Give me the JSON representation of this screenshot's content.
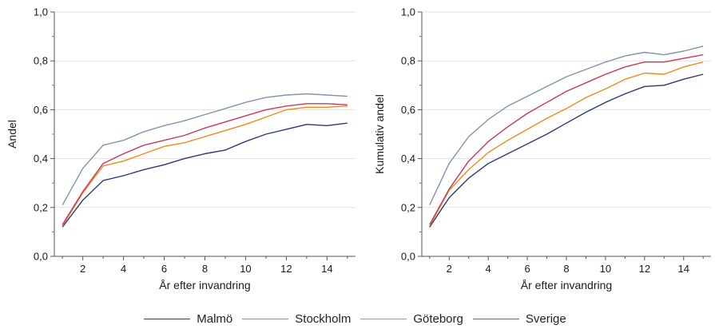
{
  "chart_data": [
    {
      "type": "line",
      "title": "",
      "xlabel": "År efter invandring",
      "ylabel": "Andel",
      "xlim": [
        0.6,
        15.4
      ],
      "ylim": [
        0,
        1
      ],
      "x": [
        1,
        2,
        3,
        4,
        5,
        6,
        7,
        8,
        9,
        10,
        11,
        12,
        13,
        14,
        15
      ],
      "xticks": [
        2,
        4,
        6,
        8,
        10,
        12,
        14
      ],
      "yticks": [
        0,
        0.2,
        0.4,
        0.6,
        0.8,
        1.0
      ],
      "ytick_labels": [
        "0,0",
        "0,2",
        "0,4",
        "0,6",
        "0,8",
        "1,0"
      ],
      "series": [
        {
          "name": "Malmö",
          "color": "#2b3a7a",
          "values": [
            0.12,
            0.23,
            0.31,
            0.33,
            0.355,
            0.375,
            0.4,
            0.42,
            0.435,
            0.47,
            0.5,
            0.52,
            0.54,
            0.535,
            0.545
          ]
        },
        {
          "name": "Stockholm",
          "color": "#7f93b2",
          "values": [
            0.21,
            0.36,
            0.455,
            0.475,
            0.51,
            0.535,
            0.555,
            0.58,
            0.605,
            0.63,
            0.65,
            0.66,
            0.665,
            0.66,
            0.655
          ]
        },
        {
          "name": "Göteborg",
          "color": "#f08a1c",
          "values": [
            0.125,
            0.26,
            0.37,
            0.39,
            0.42,
            0.45,
            0.465,
            0.49,
            0.515,
            0.54,
            0.57,
            0.6,
            0.61,
            0.61,
            0.615
          ]
        },
        {
          "name": "Sverige",
          "color": "#c8385f",
          "values": [
            0.13,
            0.265,
            0.38,
            0.42,
            0.455,
            0.475,
            0.495,
            0.525,
            0.55,
            0.575,
            0.6,
            0.615,
            0.625,
            0.625,
            0.62
          ]
        }
      ]
    },
    {
      "type": "line",
      "title": "",
      "xlabel": "År efter invandring",
      "ylabel": "Kumulativ andel",
      "xlim": [
        0.6,
        15.4
      ],
      "ylim": [
        0,
        1
      ],
      "x": [
        1,
        2,
        3,
        4,
        5,
        6,
        7,
        8,
        9,
        10,
        11,
        12,
        13,
        14,
        15
      ],
      "xticks": [
        2,
        4,
        6,
        8,
        10,
        12,
        14
      ],
      "yticks": [
        0,
        0.2,
        0.4,
        0.6,
        0.8,
        1.0
      ],
      "ytick_labels": [
        "0,0",
        "0,2",
        "0,4",
        "0,6",
        "0,8",
        "1,0"
      ],
      "series": [
        {
          "name": "Malmö",
          "color": "#2b3a7a",
          "values": [
            0.12,
            0.24,
            0.32,
            0.38,
            0.42,
            0.46,
            0.5,
            0.545,
            0.59,
            0.63,
            0.665,
            0.695,
            0.7,
            0.725,
            0.745
          ]
        },
        {
          "name": "Stockholm",
          "color": "#7f93b2",
          "values": [
            0.21,
            0.38,
            0.49,
            0.56,
            0.615,
            0.655,
            0.695,
            0.735,
            0.765,
            0.795,
            0.82,
            0.835,
            0.825,
            0.84,
            0.86
          ]
        },
        {
          "name": "Göteborg",
          "color": "#f08a1c",
          "values": [
            0.125,
            0.27,
            0.355,
            0.425,
            0.475,
            0.52,
            0.565,
            0.605,
            0.65,
            0.685,
            0.725,
            0.75,
            0.745,
            0.775,
            0.795
          ]
        },
        {
          "name": "Sverige",
          "color": "#c8385f",
          "values": [
            0.13,
            0.275,
            0.39,
            0.47,
            0.53,
            0.585,
            0.63,
            0.675,
            0.71,
            0.745,
            0.775,
            0.795,
            0.795,
            0.81,
            0.825
          ]
        }
      ]
    }
  ],
  "legend": {
    "items": [
      {
        "label": "Malmö",
        "color": "#2b3a7a"
      },
      {
        "label": "Stockholm",
        "color": "#7f93b2"
      },
      {
        "label": "Göteborg",
        "color": "#f08a1c"
      },
      {
        "label": "Sverige",
        "color": "#c8385f"
      }
    ]
  }
}
